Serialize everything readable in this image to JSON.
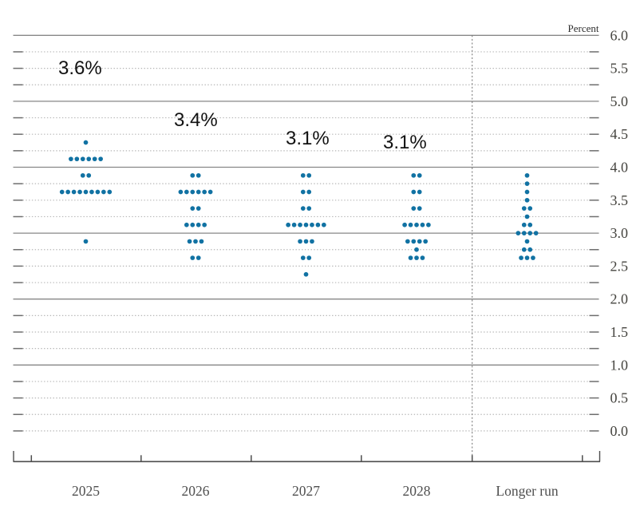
{
  "chart_data": {
    "type": "scatter",
    "chart_kind": "fomc-dot-plot",
    "unit_label": "Percent",
    "ylim": [
      0.0,
      6.0
    ],
    "gridline_step": 0.25,
    "solid_gridline_values": [
      1.0,
      2.0,
      3.0,
      4.0,
      5.0,
      6.0
    ],
    "grid": "on",
    "yticks": [
      {
        "value": 6.0,
        "label": "6.0"
      },
      {
        "value": 5.5,
        "label": "5.5"
      },
      {
        "value": 5.0,
        "label": "5.0"
      },
      {
        "value": 4.5,
        "label": "4.5"
      },
      {
        "value": 4.0,
        "label": "4.0"
      },
      {
        "value": 3.5,
        "label": "3.5"
      },
      {
        "value": 3.0,
        "label": "3.0"
      },
      {
        "value": 2.5,
        "label": "2.5"
      },
      {
        "value": 2.0,
        "label": "2.0"
      },
      {
        "value": 1.5,
        "label": "1.5"
      },
      {
        "value": 1.0,
        "label": "1.0"
      },
      {
        "value": 0.5,
        "label": "0.5"
      },
      {
        "value": 0.0,
        "label": "0.0"
      }
    ],
    "categories": [
      "2025",
      "2026",
      "2027",
      "2028",
      "Longer run"
    ],
    "separator_before_category": "Longer run",
    "series": [
      {
        "category": "2025",
        "median_label": "3.6%",
        "dots": [
          {
            "rate": 4.375,
            "count": 1
          },
          {
            "rate": 4.125,
            "count": 6
          },
          {
            "rate": 3.875,
            "count": 2
          },
          {
            "rate": 3.625,
            "count": 9
          },
          {
            "rate": 2.875,
            "count": 1
          }
        ]
      },
      {
        "category": "2026",
        "median_label": "3.4%",
        "dots": [
          {
            "rate": 3.875,
            "count": 2
          },
          {
            "rate": 3.625,
            "count": 6
          },
          {
            "rate": 3.375,
            "count": 2
          },
          {
            "rate": 3.125,
            "count": 4
          },
          {
            "rate": 2.875,
            "count": 3
          },
          {
            "rate": 2.625,
            "count": 2
          }
        ]
      },
      {
        "category": "2027",
        "median_label": "3.1%",
        "dots": [
          {
            "rate": 3.875,
            "count": 2
          },
          {
            "rate": 3.625,
            "count": 2
          },
          {
            "rate": 3.375,
            "count": 2
          },
          {
            "rate": 3.125,
            "count": 7
          },
          {
            "rate": 2.875,
            "count": 3
          },
          {
            "rate": 2.625,
            "count": 2
          },
          {
            "rate": 2.375,
            "count": 1
          }
        ]
      },
      {
        "category": "2028",
        "median_label": "3.1%",
        "dots": [
          {
            "rate": 3.875,
            "count": 2
          },
          {
            "rate": 3.625,
            "count": 2
          },
          {
            "rate": 3.375,
            "count": 2
          },
          {
            "rate": 3.125,
            "count": 5
          },
          {
            "rate": 2.875,
            "count": 4
          },
          {
            "rate": 2.75,
            "count": 1
          },
          {
            "rate": 2.625,
            "count": 3
          }
        ]
      },
      {
        "category": "Longer run",
        "median_label": null,
        "dots": [
          {
            "rate": 3.875,
            "count": 1
          },
          {
            "rate": 3.75,
            "count": 1
          },
          {
            "rate": 3.625,
            "count": 1
          },
          {
            "rate": 3.5,
            "count": 1
          },
          {
            "rate": 3.375,
            "count": 2
          },
          {
            "rate": 3.25,
            "count": 1
          },
          {
            "rate": 3.125,
            "count": 2
          },
          {
            "rate": 3.0,
            "count": 4
          },
          {
            "rate": 2.875,
            "count": 1
          },
          {
            "rate": 2.75,
            "count": 2
          },
          {
            "rate": 2.625,
            "count": 3
          }
        ]
      }
    ],
    "colors": {
      "dot": "#1172a3",
      "solid_grid": "#878787",
      "dotted_grid": "#b6b6b6",
      "edge_tick": "#6e6e6e",
      "axis": "#4d4d4d",
      "tick_label": "#45443f",
      "category_label": "#4f4f4f",
      "annotation": "#121212",
      "separator": "#7a7a7a"
    },
    "legend": null
  }
}
